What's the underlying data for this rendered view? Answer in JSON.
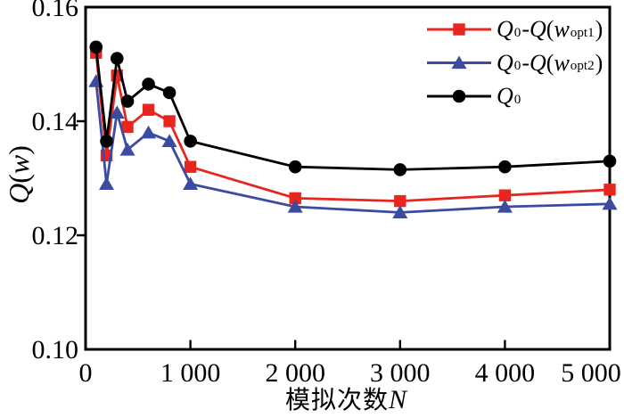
{
  "figure": {
    "background": "#ffffff",
    "frame_color": "#000000",
    "y_axis": {
      "title": "Q(w)",
      "title_tokens": [
        [
          "i",
          "Q"
        ],
        [
          "n",
          "("
        ],
        [
          "i",
          "w"
        ],
        [
          "n",
          ")"
        ]
      ],
      "tick_labels": [
        "0.10",
        "0.12",
        "0.14",
        "0.16"
      ],
      "tick_values": [
        0.1,
        0.12,
        0.14,
        0.16
      ]
    },
    "x_axis": {
      "title": "模拟次数N",
      "title_tokens": [
        [
          "cjk",
          "模拟次数"
        ],
        [
          "i",
          "N"
        ]
      ],
      "tick_labels": [
        "0",
        "1 000",
        "2 000",
        "3 000",
        "4 000",
        "5 000"
      ],
      "tick_values": [
        0,
        1000,
        2000,
        3000,
        4000,
        5000
      ]
    }
  },
  "chart_data": {
    "type": "line",
    "title": "",
    "xlabel": "模拟次数N",
    "ylabel": "Q(w)",
    "xlim": [
      0,
      5000
    ],
    "ylim": [
      0.1,
      0.16
    ],
    "grid": false,
    "legend_position": "top-right-inside",
    "x": [
      100,
      200,
      300,
      400,
      600,
      800,
      1000,
      2000,
      3000,
      4000,
      5000
    ],
    "series": [
      {
        "id": "q0_minus_q_wopt1",
        "name": "Q0 - Q(wopt1)",
        "marker": "square",
        "color": "#e7261f",
        "values": [
          0.152,
          0.134,
          0.148,
          0.139,
          0.142,
          0.14,
          0.132,
          0.1265,
          0.126,
          0.127,
          0.128
        ]
      },
      {
        "id": "q0_minus_q_wopt2",
        "name": "Q0 - Q(wopt2)",
        "marker": "triangle",
        "color": "#3b4ba0",
        "values": [
          0.147,
          0.129,
          0.1415,
          0.135,
          0.138,
          0.1365,
          0.129,
          0.125,
          0.124,
          0.125,
          0.1255
        ]
      },
      {
        "id": "q0",
        "name": "Q0",
        "marker": "circle",
        "color": "#000000",
        "values": [
          0.153,
          0.1365,
          0.151,
          0.1435,
          0.1465,
          0.145,
          0.1365,
          0.132,
          0.1315,
          0.132,
          0.133
        ]
      }
    ]
  },
  "legend": {
    "items": [
      {
        "id": "q0_minus_q_wopt1",
        "marker": "square",
        "color": "#e7261f",
        "label_tokens": [
          [
            "i",
            "Q"
          ],
          [
            "sub",
            "0"
          ],
          [
            "n",
            " - "
          ],
          [
            "i",
            "Q"
          ],
          [
            "n",
            "("
          ],
          [
            "i",
            "w"
          ],
          [
            "sub",
            "opt1"
          ],
          [
            "n",
            ")"
          ]
        ]
      },
      {
        "id": "q0_minus_q_wopt2",
        "marker": "triangle",
        "color": "#3b4ba0",
        "label_tokens": [
          [
            "i",
            "Q"
          ],
          [
            "sub",
            "0"
          ],
          [
            "n",
            " - "
          ],
          [
            "i",
            "Q"
          ],
          [
            "n",
            "("
          ],
          [
            "i",
            "w"
          ],
          [
            "sub",
            "opt2"
          ],
          [
            "n",
            ")"
          ]
        ]
      },
      {
        "id": "q0",
        "marker": "circle",
        "color": "#000000",
        "label_tokens": [
          [
            "i",
            "Q"
          ],
          [
            "sub",
            "0"
          ]
        ]
      }
    ]
  }
}
